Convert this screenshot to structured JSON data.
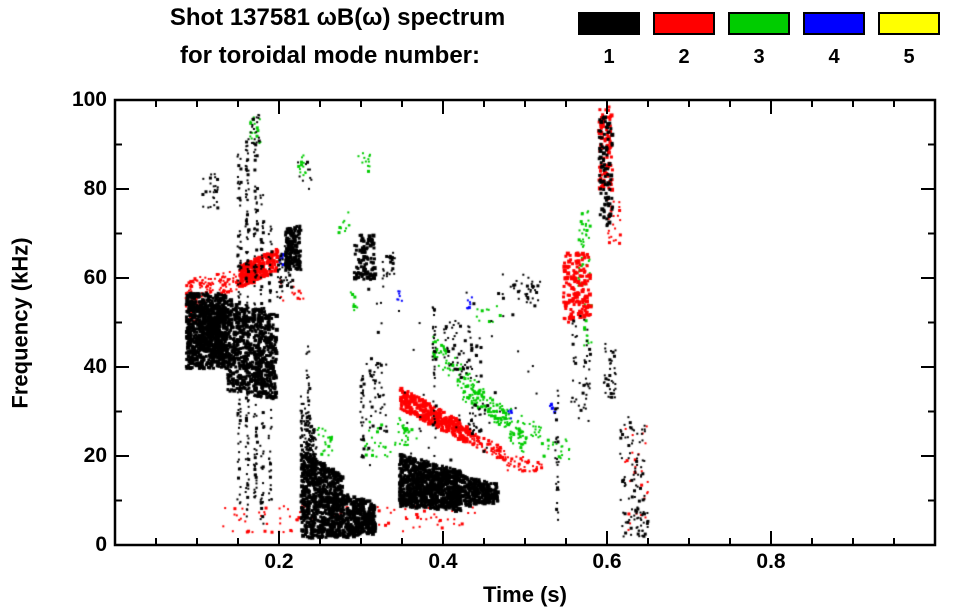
{
  "chart_data": {
    "type": "scatter",
    "title_line1": "Shot 137581 ωB(ω) spectrum",
    "title_line2": "for toroidal mode number:",
    "xlabel": "Time (s)",
    "ylabel": "Frequency (kHz)",
    "xlim": [
      0,
      1.0
    ],
    "ylim": [
      0,
      100
    ],
    "x_major_ticks": [
      0.2,
      0.4,
      0.6,
      0.8
    ],
    "x_minor_step": 0.05,
    "y_major_ticks": [
      0,
      20,
      40,
      60,
      80,
      100
    ],
    "y_minor_step": 10,
    "grid": false,
    "legend_position": "top-right",
    "axis_color": "#000000",
    "background": "#ffffff",
    "series": [
      {
        "name": "n=1",
        "label": "1",
        "color": "#000000",
        "clusters": [
          {
            "t": [
              0.085,
              0.135
            ],
            "fa": [
              40,
              57
            ],
            "fb": [
              40,
              57
            ],
            "n": 700,
            "s": 3
          },
          {
            "t": [
              0.1,
              0.135
            ],
            "fa": [
              44,
              54
            ],
            "fb": [
              44,
              54
            ],
            "n": 300,
            "s": 3
          },
          {
            "t": [
              0.135,
              0.195
            ],
            "fa": [
              35,
              56
            ],
            "fb": [
              33,
              52
            ],
            "n": 650,
            "s": 3
          },
          {
            "t": [
              0.148,
              0.152
            ],
            "fa": [
              8,
              88
            ],
            "fb": [
              8,
              88
            ],
            "n": 90,
            "s": 2
          },
          {
            "t": [
              0.158,
              0.162
            ],
            "fa": [
              5,
              92
            ],
            "fb": [
              5,
              92
            ],
            "n": 110,
            "s": 2
          },
          {
            "t": [
              0.168,
              0.172
            ],
            "fa": [
              10,
              95
            ],
            "fb": [
              10,
              95
            ],
            "n": 100,
            "s": 2
          },
          {
            "t": [
              0.176,
              0.18
            ],
            "fa": [
              5,
              80
            ],
            "fb": [
              5,
              80
            ],
            "n": 80,
            "s": 2
          },
          {
            "t": [
              0.186,
              0.19
            ],
            "fa": [
              10,
              72
            ],
            "fb": [
              10,
              72
            ],
            "n": 60,
            "s": 2
          },
          {
            "t": [
              0.105,
              0.125
            ],
            "fa": [
              76,
              84
            ],
            "fb": [
              76,
              84
            ],
            "n": 25,
            "s": 2
          },
          {
            "t": [
              0.162,
              0.175
            ],
            "fa": [
              90,
              97
            ],
            "fb": [
              90,
              97
            ],
            "n": 18,
            "s": 2
          },
          {
            "t": [
              0.196,
              0.215
            ],
            "fa": [
              55,
              65
            ],
            "fb": [
              58,
              70
            ],
            "n": 60,
            "s": 2
          },
          {
            "t": [
              0.206,
              0.225
            ],
            "fa": [
              62,
              72
            ],
            "fb": [
              62,
              72
            ],
            "n": 140,
            "s": 3
          },
          {
            "t": [
              0.225,
              0.275
            ],
            "fa": [
              2,
              22
            ],
            "fb": [
              2,
              16
            ],
            "n": 700,
            "s": 3
          },
          {
            "t": [
              0.225,
              0.245
            ],
            "fa": [
              18,
              34
            ],
            "fb": [
              12,
              26
            ],
            "n": 150,
            "s": 2
          },
          {
            "t": [
              0.275,
              0.315
            ],
            "fa": [
              2,
              12
            ],
            "fb": [
              3,
              10
            ],
            "n": 350,
            "s": 3
          },
          {
            "t": [
              0.232,
              0.236
            ],
            "fa": [
              5,
              45
            ],
            "fb": [
              5,
              45
            ],
            "n": 50,
            "s": 2
          },
          {
            "t": [
              0.298,
              0.302
            ],
            "fa": [
              20,
              40
            ],
            "fb": [
              20,
              40
            ],
            "n": 30,
            "s": 2
          },
          {
            "t": [
              0.29,
              0.315
            ],
            "fa": [
              60,
              70
            ],
            "fb": [
              60,
              70
            ],
            "n": 90,
            "s": 3
          },
          {
            "t": [
              0.325,
              0.34
            ],
            "fa": [
              60,
              66
            ],
            "fb": [
              60,
              66
            ],
            "n": 25,
            "s": 2
          },
          {
            "t": [
              0.305,
              0.33
            ],
            "fa": [
              25,
              42
            ],
            "fb": [
              25,
              42
            ],
            "n": 40,
            "s": 2
          },
          {
            "t": [
              0.345,
              0.42
            ],
            "fa": [
              9,
              21
            ],
            "fb": [
              8,
              17
            ],
            "n": 900,
            "s": 3
          },
          {
            "t": [
              0.42,
              0.465
            ],
            "fa": [
              9,
              16
            ],
            "fb": [
              10,
              14
            ],
            "n": 260,
            "s": 3
          },
          {
            "t": [
              0.386,
              0.39
            ],
            "fa": [
              20,
              55
            ],
            "fb": [
              20,
              55
            ],
            "n": 40,
            "s": 2
          },
          {
            "t": [
              0.4,
              0.445
            ],
            "fa": [
              38,
              52
            ],
            "fb": [
              36,
              48
            ],
            "n": 60,
            "s": 2
          },
          {
            "t": [
              0.43,
              0.45
            ],
            "fa": [
              25,
              32
            ],
            "fb": [
              25,
              32
            ],
            "n": 30,
            "s": 2
          },
          {
            "t": [
              0.3,
              0.52
            ],
            "fa": [
              15,
              60
            ],
            "fb": [
              15,
              60
            ],
            "n": 60,
            "s": 2
          },
          {
            "t": [
              0.5,
              0.515
            ],
            "fa": [
              54,
              60
            ],
            "fb": [
              54,
              60
            ],
            "n": 20,
            "s": 2
          },
          {
            "t": [
              0.535,
              0.54
            ],
            "fa": [
              5,
              35
            ],
            "fb": [
              5,
              35
            ],
            "n": 30,
            "s": 2
          },
          {
            "t": [
              0.555,
              0.578
            ],
            "fa": [
              28,
              52
            ],
            "fb": [
              28,
              52
            ],
            "n": 50,
            "s": 2
          },
          {
            "t": [
              0.588,
              0.605
            ],
            "fa": [
              72,
              97
            ],
            "fb": [
              72,
              97
            ],
            "n": 90,
            "s": 3
          },
          {
            "t": [
              0.595,
              0.61
            ],
            "fa": [
              33,
              46
            ],
            "fb": [
              33,
              46
            ],
            "n": 40,
            "s": 2
          },
          {
            "t": [
              0.615,
              0.645
            ],
            "fa": [
              2,
              30
            ],
            "fb": [
              2,
              30
            ],
            "n": 90,
            "s": 2
          },
          {
            "t": [
              0.63,
              0.65
            ],
            "fa": [
              2,
              8
            ],
            "fb": [
              2,
              8
            ],
            "n": 25,
            "s": 2
          },
          {
            "t": [
              0.22,
              0.24
            ],
            "fa": [
              80,
              88
            ],
            "fb": [
              80,
              88
            ],
            "n": 10,
            "s": 2
          },
          {
            "t": [
              0.46,
              0.52
            ],
            "fa": [
              55,
              62
            ],
            "fb": [
              55,
              62
            ],
            "n": 15,
            "s": 2
          }
        ]
      },
      {
        "name": "n=2",
        "label": "2",
        "color": "#ff0000",
        "clusters": [
          {
            "t": [
              0.085,
              0.15
            ],
            "fa": [
              55,
              60
            ],
            "fb": [
              57,
              62
            ],
            "n": 120,
            "s": 2
          },
          {
            "t": [
              0.15,
              0.196
            ],
            "fa": [
              58,
              63
            ],
            "fb": [
              62,
              67
            ],
            "n": 260,
            "s": 3
          },
          {
            "t": [
              0.085,
              0.11
            ],
            "fa": [
              50,
              56
            ],
            "fb": [
              50,
              56
            ],
            "n": 40,
            "s": 2
          },
          {
            "t": [
              0.13,
              0.36
            ],
            "fa": [
              3,
              9
            ],
            "fb": [
              3,
              9
            ],
            "n": 80,
            "s": 2
          },
          {
            "t": [
              0.2,
              0.23
            ],
            "fa": [
              55,
              60
            ],
            "fb": [
              55,
              60
            ],
            "n": 15,
            "s": 2
          },
          {
            "t": [
              0.345,
              0.43
            ],
            "fa": [
              31,
              36
            ],
            "fb": [
              23,
              27
            ],
            "n": 300,
            "s": 3
          },
          {
            "t": [
              0.43,
              0.475
            ],
            "fa": [
              23,
              26
            ],
            "fb": [
              19,
              22
            ],
            "n": 80,
            "s": 2
          },
          {
            "t": [
              0.475,
              0.52
            ],
            "fa": [
              17,
              21
            ],
            "fb": [
              16,
              19
            ],
            "n": 40,
            "s": 2
          },
          {
            "t": [
              0.545,
              0.578
            ],
            "fa": [
              50,
              66
            ],
            "fb": [
              52,
              66
            ],
            "n": 160,
            "s": 3
          },
          {
            "t": [
              0.588,
              0.605
            ],
            "fa": [
              80,
              99
            ],
            "fb": [
              80,
              99
            ],
            "n": 80,
            "s": 3
          },
          {
            "t": [
              0.6,
              0.615
            ],
            "fa": [
              68,
              78
            ],
            "fb": [
              68,
              78
            ],
            "n": 25,
            "s": 2
          },
          {
            "t": [
              0.62,
              0.65
            ],
            "fa": [
              3,
              28
            ],
            "fb": [
              3,
              28
            ],
            "n": 25,
            "s": 2
          },
          {
            "t": [
              0.36,
              0.44
            ],
            "fa": [
              4,
              9
            ],
            "fb": [
              4,
              9
            ],
            "n": 30,
            "s": 2
          }
        ]
      },
      {
        "name": "n=3",
        "label": "3",
        "color": "#00cc00",
        "clusters": [
          {
            "t": [
              0.162,
              0.178
            ],
            "fa": [
              90,
              97
            ],
            "fb": [
              90,
              97
            ],
            "n": 20,
            "s": 2
          },
          {
            "t": [
              0.222,
              0.232
            ],
            "fa": [
              83,
              88
            ],
            "fb": [
              83,
              88
            ],
            "n": 12,
            "s": 2
          },
          {
            "t": [
              0.295,
              0.31
            ],
            "fa": [
              84,
              90
            ],
            "fb": [
              84,
              90
            ],
            "n": 12,
            "s": 2
          },
          {
            "t": [
              0.27,
              0.285
            ],
            "fa": [
              70,
              75
            ],
            "fb": [
              70,
              75
            ],
            "n": 10,
            "s": 2
          },
          {
            "t": [
              0.385,
              0.5
            ],
            "fa": [
              42,
              48
            ],
            "fb": [
              20,
              25
            ],
            "n": 160,
            "s": 2
          },
          {
            "t": [
              0.42,
              0.52
            ],
            "fa": [
              33,
              37
            ],
            "fb": [
              23,
              27
            ],
            "n": 80,
            "s": 2
          },
          {
            "t": [
              0.3,
              0.345
            ],
            "fa": [
              20,
              28
            ],
            "fb": [
              20,
              28
            ],
            "n": 30,
            "s": 2
          },
          {
            "t": [
              0.245,
              0.27
            ],
            "fa": [
              20,
              27
            ],
            "fb": [
              20,
              27
            ],
            "n": 20,
            "s": 2
          },
          {
            "t": [
              0.52,
              0.555
            ],
            "fa": [
              19,
              24
            ],
            "fb": [
              19,
              24
            ],
            "n": 20,
            "s": 2
          },
          {
            "t": [
              0.563,
              0.578
            ],
            "fa": [
              58,
              75
            ],
            "fb": [
              60,
              76
            ],
            "n": 50,
            "s": 2
          },
          {
            "t": [
              0.57,
              0.58
            ],
            "fa": [
              45,
              55
            ],
            "fb": [
              45,
              55
            ],
            "n": 12,
            "s": 2
          },
          {
            "t": [
              0.345,
              0.37
            ],
            "fa": [
              23,
              29
            ],
            "fb": [
              21,
              26
            ],
            "n": 25,
            "s": 2
          },
          {
            "t": [
              0.285,
              0.295
            ],
            "fa": [
              53,
              57
            ],
            "fb": [
              53,
              57
            ],
            "n": 8,
            "s": 2
          },
          {
            "t": [
              0.44,
              0.47
            ],
            "fa": [
              50,
              55
            ],
            "fb": [
              50,
              55
            ],
            "n": 10,
            "s": 2
          }
        ]
      },
      {
        "name": "n=4",
        "label": "4",
        "color": "#0000ff",
        "clusters": [
          {
            "t": [
              0.198,
              0.206
            ],
            "fa": [
              63,
              67
            ],
            "fb": [
              63,
              67
            ],
            "n": 8,
            "s": 2
          },
          {
            "t": [
              0.343,
              0.35
            ],
            "fa": [
              55,
              58
            ],
            "fb": [
              55,
              58
            ],
            "n": 7,
            "s": 2
          },
          {
            "t": [
              0.428,
              0.435
            ],
            "fa": [
              53,
              56
            ],
            "fb": [
              53,
              56
            ],
            "n": 7,
            "s": 2
          },
          {
            "t": [
              0.475,
              0.483
            ],
            "fa": [
              28,
              31
            ],
            "fb": [
              28,
              31
            ],
            "n": 7,
            "s": 2
          },
          {
            "t": [
              0.528,
              0.535
            ],
            "fa": [
              30,
              33
            ],
            "fb": [
              30,
              33
            ],
            "n": 7,
            "s": 2
          }
        ]
      },
      {
        "name": "n=5",
        "label": "5",
        "color": "#ffff00",
        "clusters": []
      }
    ]
  }
}
